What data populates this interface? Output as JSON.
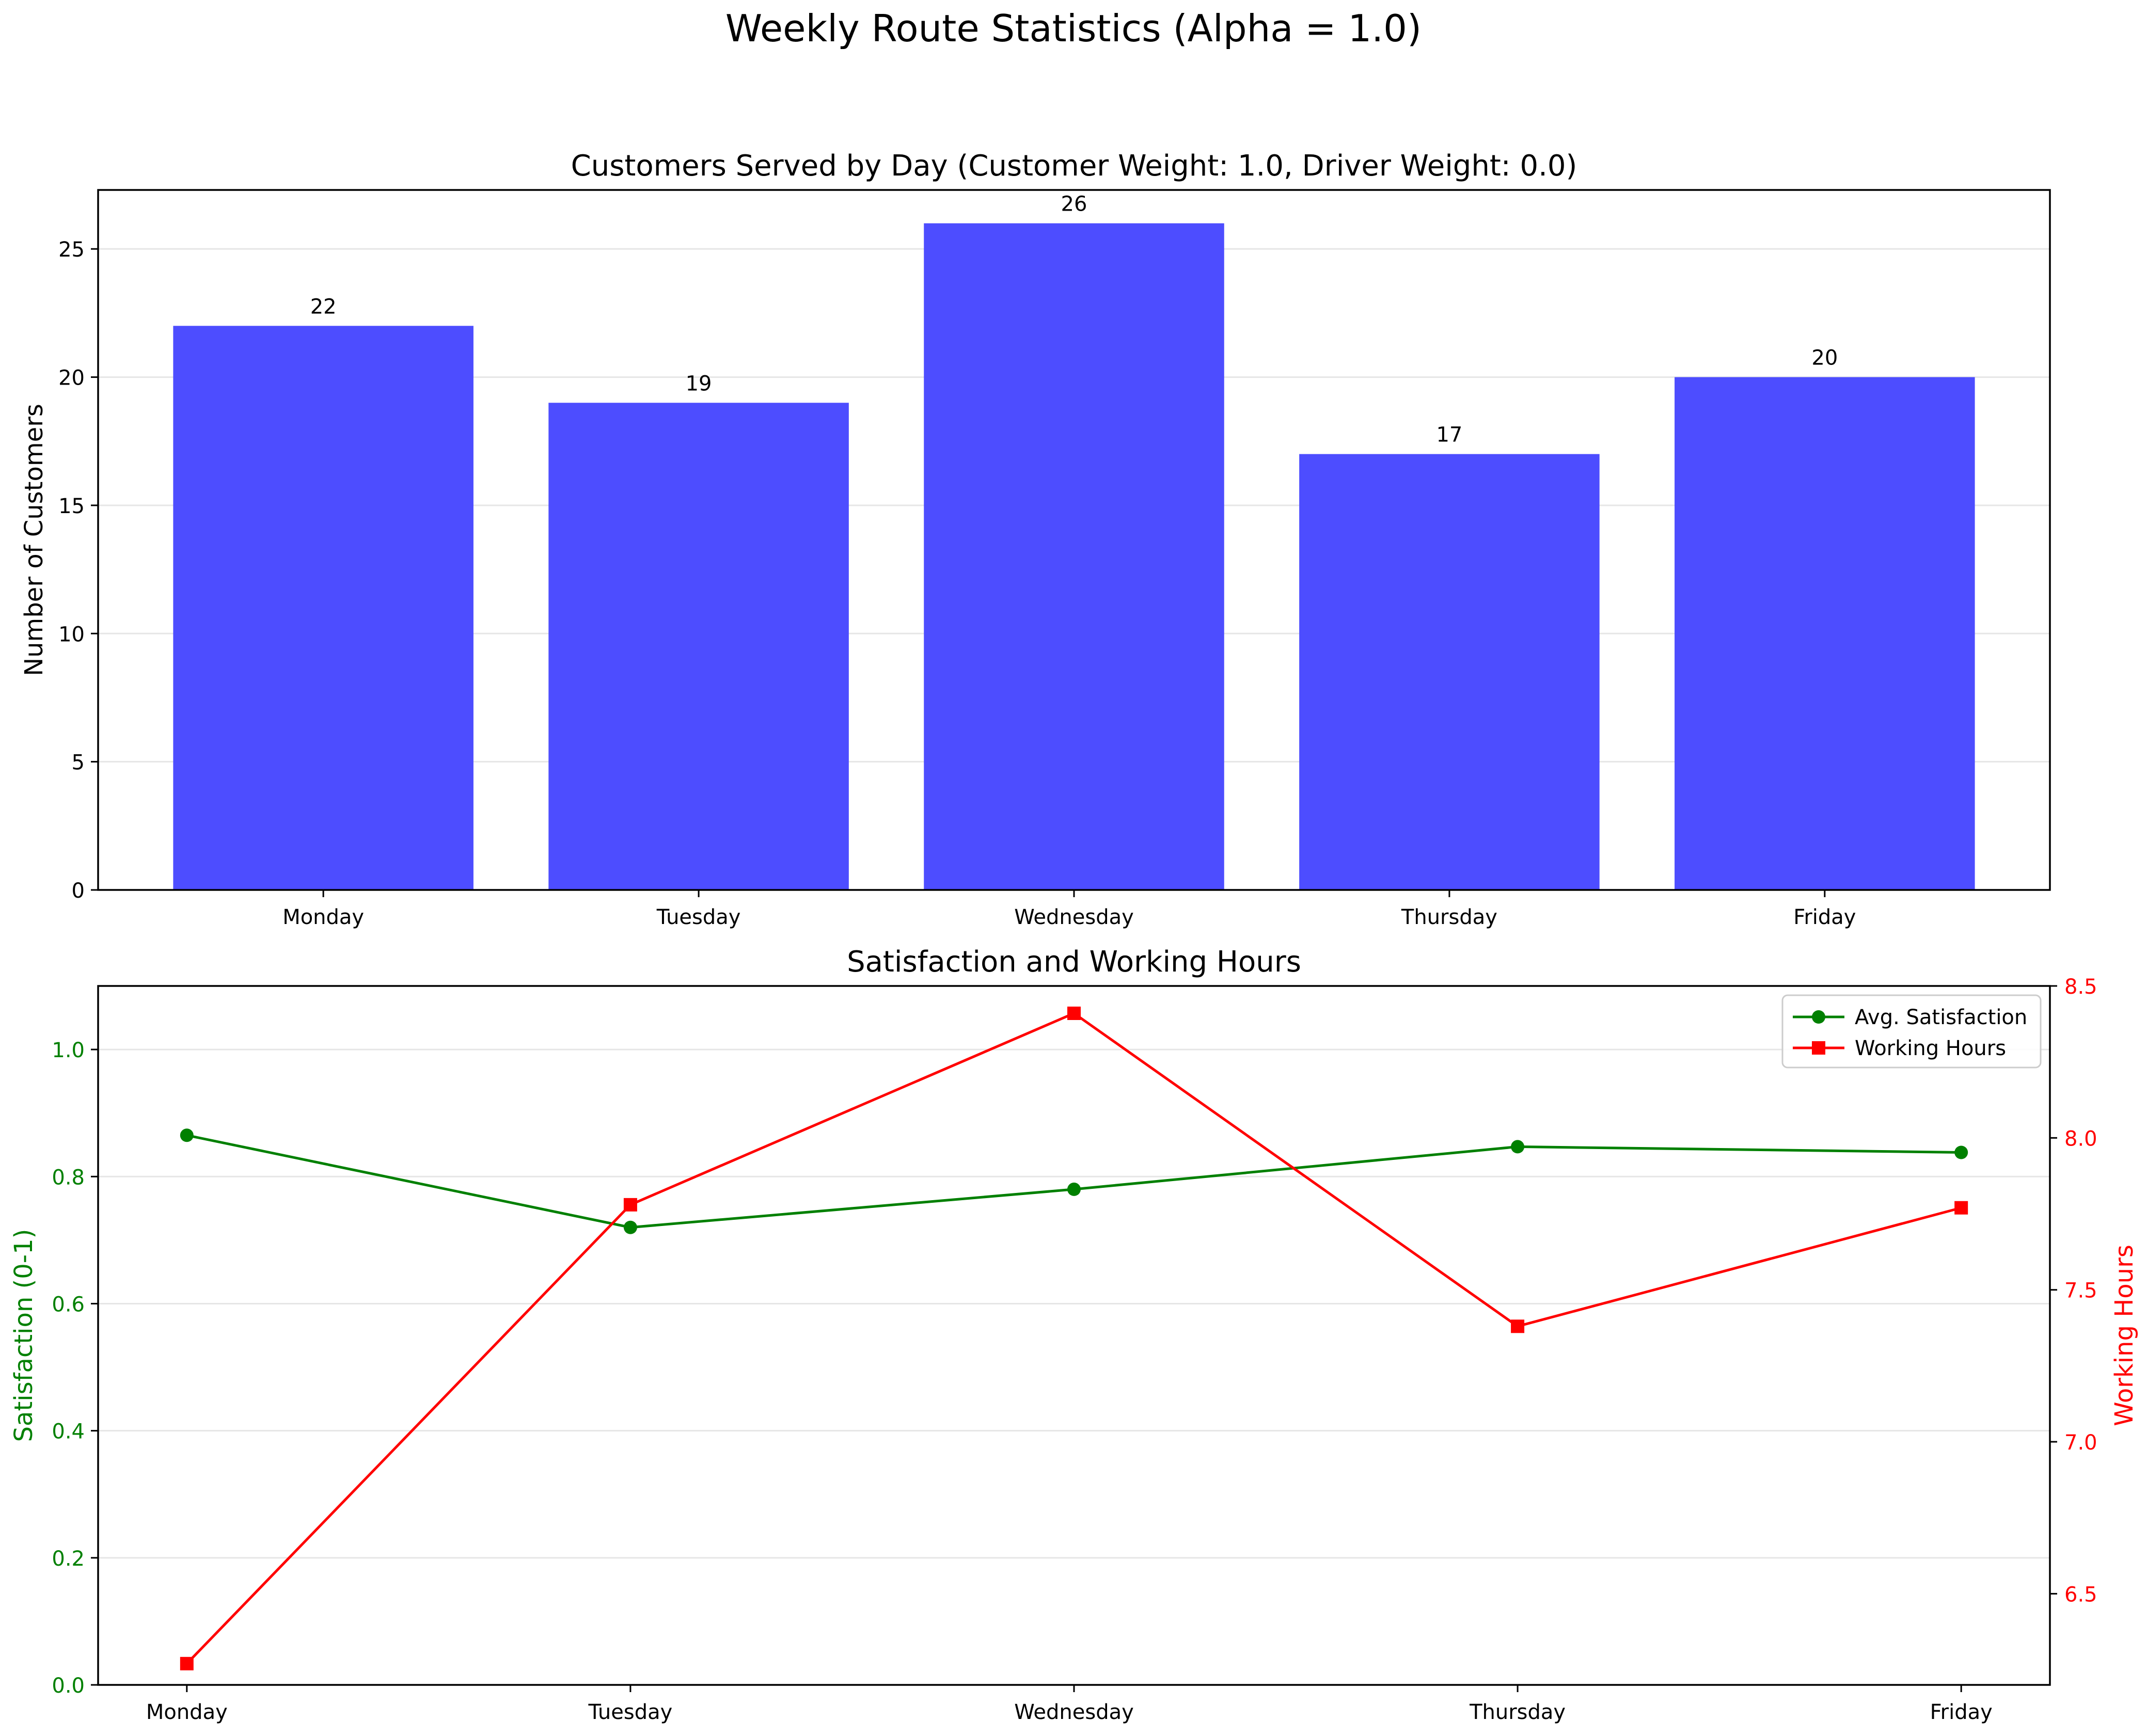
{
  "figure": {
    "title": "Weekly Route Statistics (Alpha = 1.0)"
  },
  "chart_data": [
    {
      "type": "bar",
      "title": "Customers Served by Day (Customer Weight: 1.0, Driver Weight: 0.0)",
      "xlabel": "",
      "ylabel": "Number of Customers",
      "categories": [
        "Monday",
        "Tuesday",
        "Wednesday",
        "Thursday",
        "Friday"
      ],
      "values": [
        22,
        19,
        26,
        17,
        20
      ],
      "data_labels": [
        "22",
        "19",
        "26",
        "17",
        "20"
      ],
      "ylim": [
        0,
        27.3
      ],
      "yticks": [
        0,
        5,
        10,
        15,
        20,
        25
      ],
      "grid": "y",
      "color": "#4d4dff"
    },
    {
      "type": "line",
      "title": "Satisfaction and Working Hours",
      "categories": [
        "Monday",
        "Tuesday",
        "Wednesday",
        "Thursday",
        "Friday"
      ],
      "legend_position": "upper-right",
      "grid": "y",
      "left_axis": {
        "label": "Satisfaction (0-1)",
        "ylim": [
          0,
          1.1
        ],
        "ticks": [
          0,
          0.2,
          0.4,
          0.6,
          0.8,
          1.0
        ],
        "tick_labels": [
          "0.0",
          "0.2",
          "0.4",
          "0.6",
          "0.8",
          "1.0"
        ],
        "color": "#008000"
      },
      "right_axis": {
        "label": "Working Hours",
        "ylim": [
          6.2,
          8.5
        ],
        "ticks": [
          6.5,
          7.0,
          7.5,
          8.0,
          8.5
        ],
        "tick_labels": [
          "6.5",
          "7.0",
          "7.5",
          "8.0",
          "8.5"
        ],
        "color": "#ff0000"
      },
      "series": [
        {
          "name": "Avg. Satisfaction",
          "axis": "left",
          "values": [
            0.865,
            0.72,
            0.78,
            0.847,
            0.838
          ],
          "color": "#008000",
          "marker": "circle"
        },
        {
          "name": "Working Hours",
          "axis": "right",
          "values": [
            6.27,
            7.78,
            8.41,
            7.38,
            7.77
          ],
          "color": "#ff0000",
          "marker": "square"
        }
      ]
    }
  ]
}
